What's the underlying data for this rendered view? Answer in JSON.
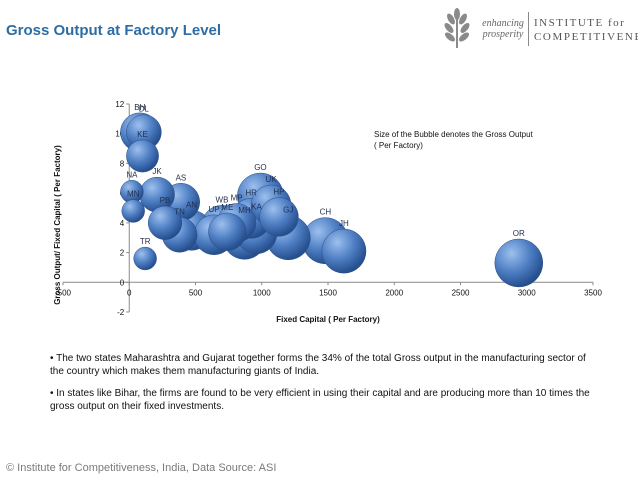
{
  "slide": {
    "title": "Gross Output at Factory Level",
    "footer": "© Institute for Competitiveness, India, Data Source: ASI"
  },
  "logo": {
    "tagline_1": "enhancing",
    "tagline_2": "prosperity",
    "org_line_1": "INSTITUTE for",
    "org_line_2": "COMPETITIVENESS"
  },
  "bullets": [
    "• The two states Maharashtra and Gujarat together forms the 34% of the total Gross output in the manufacturing sector of the country which makes them manufacturing giants of India.",
    "• In states like Bihar, the firms are found to be very efficient in using their capital and are producing more than 10 times the gross output on their fixed investments."
  ],
  "colors": {
    "title": "#2e6da4",
    "bubble_light": "#8fb4e6",
    "bubble_dark": "#264f8e"
  },
  "chart_data": {
    "type": "bubble",
    "xlabel": "Fixed  Capital ( Per Factory)",
    "ylabel": "Gross Output/ Fixed Capital ( Per Factory)",
    "xlim": [
      -500,
      3500
    ],
    "ylim": [
      -2,
      12
    ],
    "xticks": [
      -500,
      0,
      500,
      1000,
      1500,
      2000,
      2500,
      3000,
      3500
    ],
    "yticks": [
      -2,
      0,
      2,
      4,
      6,
      8,
      10,
      12
    ],
    "grid": false,
    "note": "Size of the Bubble denotes the Gross Output ( Per Factory)",
    "points": [
      {
        "label": "BH",
        "x": 80,
        "y": 10.1,
        "size": 13
      },
      {
        "label": "DL",
        "x": 110,
        "y": 10.1,
        "size": 10
      },
      {
        "label": "KE",
        "x": 100,
        "y": 8.5,
        "size": 8
      },
      {
        "label": "NA",
        "x": 20,
        "y": 6.1,
        "size": 3
      },
      {
        "label": "MN",
        "x": 30,
        "y": 4.8,
        "size": 3
      },
      {
        "label": "JK",
        "x": 210,
        "y": 5.9,
        "size": 10
      },
      {
        "label": "PB",
        "x": 270,
        "y": 4.0,
        "size": 9
      },
      {
        "label": "AS",
        "x": 390,
        "y": 5.4,
        "size": 12
      },
      {
        "label": "TN",
        "x": 380,
        "y": 3.2,
        "size": 10
      },
      {
        "label": "AN",
        "x": 470,
        "y": 3.5,
        "size": 14
      },
      {
        "label": "UP",
        "x": 640,
        "y": 3.2,
        "size": 14
      },
      {
        "label": "WB",
        "x": 700,
        "y": 3.8,
        "size": 15
      },
      {
        "label": "ME",
        "x": 740,
        "y": 3.4,
        "size": 12
      },
      {
        "label": "MP",
        "x": 810,
        "y": 4.0,
        "size": 13
      },
      {
        "label": "MH",
        "x": 870,
        "y": 3.0,
        "size": 17
      },
      {
        "label": "HR",
        "x": 920,
        "y": 4.3,
        "size": 14
      },
      {
        "label": "KA",
        "x": 960,
        "y": 3.3,
        "size": 15
      },
      {
        "label": "GO",
        "x": 990,
        "y": 5.8,
        "size": 20
      },
      {
        "label": "UK",
        "x": 1070,
        "y": 5.2,
        "size": 14
      },
      {
        "label": "HP",
        "x": 1130,
        "y": 4.4,
        "size": 13
      },
      {
        "label": "GJ",
        "x": 1200,
        "y": 3.0,
        "size": 18
      },
      {
        "label": "CH",
        "x": 1480,
        "y": 2.8,
        "size": 20
      },
      {
        "label": "JH",
        "x": 1620,
        "y": 2.1,
        "size": 18
      },
      {
        "label": "OR",
        "x": 2940,
        "y": 1.3,
        "size": 22
      },
      {
        "label": "TR",
        "x": 120,
        "y": 1.6,
        "size": 3
      }
    ]
  }
}
